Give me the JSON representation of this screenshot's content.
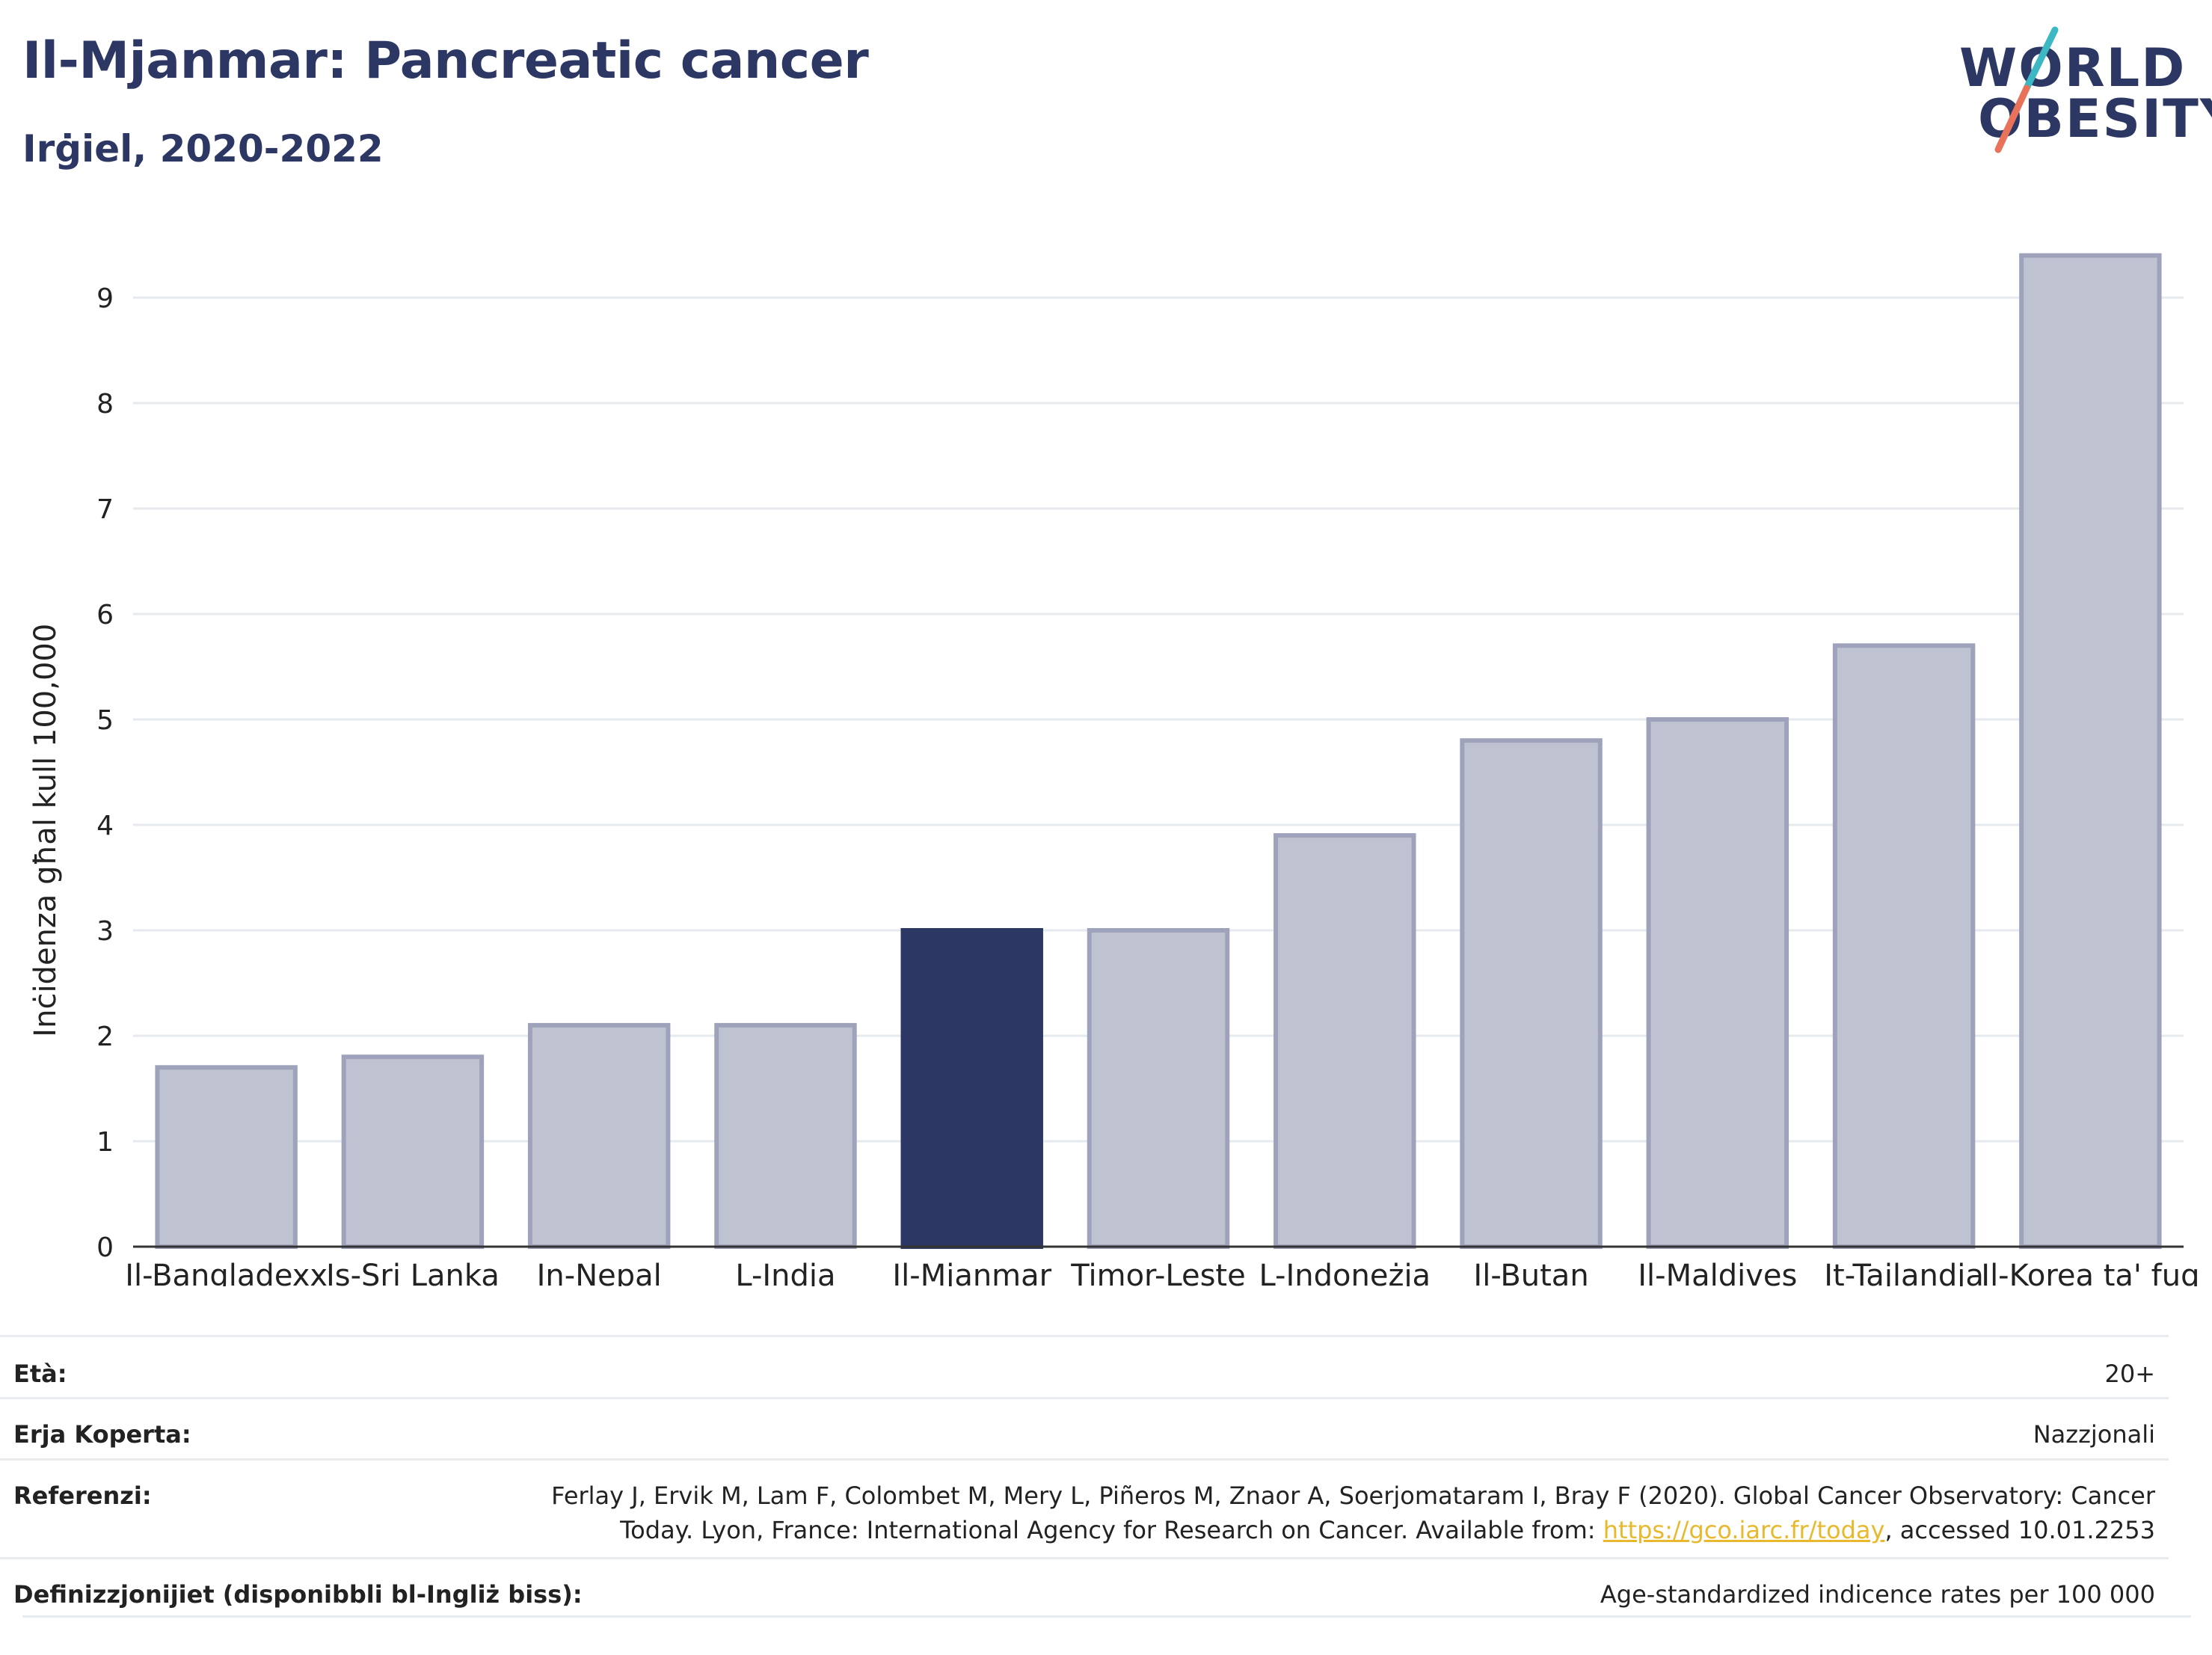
{
  "header": {
    "title": "Il-Mjanmar: Pancreatic cancer",
    "subtitle": "Irġiel, 2020-2022",
    "logo_line1": "WORLD",
    "logo_line2": "OBESITY"
  },
  "colors": {
    "title": "#2c3764",
    "highlight_bar": "#2c3764",
    "other_bar_fill": "#bfc3d1",
    "other_bar_stroke": "#9ea3bb",
    "logo_slash_top": "#3bb8c4",
    "logo_slash_bottom": "#e8735a",
    "link": "#e8b92e"
  },
  "chart_data": {
    "type": "bar",
    "title": "Il-Mjanmar: Pancreatic cancer",
    "subtitle": "Irġiel, 2020-2022",
    "xlabel": "",
    "ylabel": "Inċidenza għal kull 100,000",
    "ylim": [
      0,
      9.6
    ],
    "yticks": [
      0,
      1,
      2,
      3,
      4,
      5,
      6,
      7,
      8,
      9
    ],
    "grid": true,
    "highlight": "Il-Mjanmar",
    "categories": [
      "Il-Bangladexx",
      "Is-Sri Lanka",
      "In-Nepal",
      "L-Indja",
      "Il-Mjanmar",
      "Timor-Leste",
      "L-Indoneżja",
      "Il-Butan",
      "Il-Maldives",
      "It-Tajlandja",
      "Il-Korea ta' fuq"
    ],
    "values": [
      1.7,
      1.8,
      2.1,
      2.1,
      3.0,
      3.0,
      3.9,
      4.8,
      5.0,
      5.7,
      9.4
    ]
  },
  "meta": {
    "age_label": "Età:",
    "age_value": "20+",
    "area_label": "Erja Koperta:",
    "area_value": "Nazzjonali",
    "ref_label": "Referenzi:",
    "ref_line1": "Ferlay J, Ervik M, Lam F, Colombet M, Mery L, Piñeros M, Znaor A, Soerjomataram I, Bray F (2020). Global Cancer Observatory: Cancer",
    "ref_line2_pre": "Today. Lyon, France: International Agency for Research on Cancer. Available from: ",
    "ref_link": "https://gco.iarc.fr/today",
    "ref_line2_post": ", accessed 10.01.2253",
    "def_label": "Definizzjonijiet (disponibbli bl-Ingliż biss):",
    "def_value": "Age-standardized indicence rates per 100 000"
  }
}
